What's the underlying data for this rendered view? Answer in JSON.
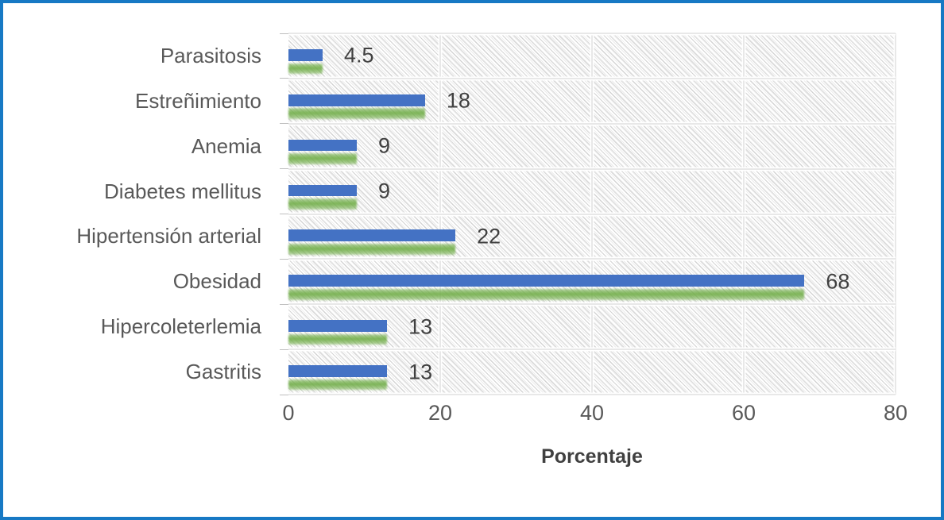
{
  "frame": {
    "border_color": "#1779C4",
    "background": "#ffffff"
  },
  "chart_data": {
    "type": "bar",
    "orientation": "horizontal",
    "categories": [
      "Parasitosis",
      "Estreñimiento",
      "Anemia",
      "Diabetes mellitus",
      "Hipertensión arterial",
      "Obesidad",
      "Hipercoleterlemia",
      "Gastritis"
    ],
    "values": [
      4.5,
      18,
      9,
      9,
      22,
      68,
      13,
      13
    ],
    "value_labels": [
      "4.5",
      "18",
      "9",
      "9",
      "22",
      "68",
      "13",
      "13"
    ],
    "title": "",
    "xlabel": "Porcentaje",
    "ylabel": "",
    "xlim": [
      0,
      80
    ],
    "x_ticks": [
      0,
      20,
      40,
      60,
      80
    ],
    "x_tick_labels": [
      "0",
      "20",
      "40",
      "60",
      "80"
    ],
    "grid": true,
    "legend": false,
    "plot_background": "diagonal-hatch",
    "bar_color": "#4472C4",
    "bar_shadow_color": "#70AD47",
    "label_color": "#595959",
    "value_label_color": "#404040"
  }
}
